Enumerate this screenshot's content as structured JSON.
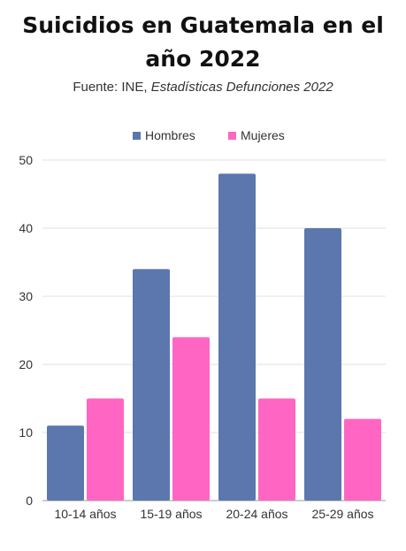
{
  "header": {
    "title": "Suicidios en Guatemala en el año 2022",
    "source_prefix": "Fuente: INE, ",
    "source_italic": "Estadísticas Defunciones 2022"
  },
  "chart_data": {
    "type": "bar",
    "title": "Suicidios en Guatemala en el año 2022",
    "subtitle": "Fuente: INE, Estadísticas Defunciones 2022",
    "categories": [
      "10-14 años",
      "15-19 años",
      "20-24 años",
      "25-29 años"
    ],
    "series": [
      {
        "name": "Hombres",
        "color": "#5b77ad",
        "values": [
          11,
          34,
          48,
          40
        ]
      },
      {
        "name": "Mujeres",
        "color": "#ff66c4",
        "values": [
          15,
          24,
          15,
          12
        ]
      }
    ],
    "ylim": [
      0,
      50
    ],
    "yticks": [
      0,
      10,
      20,
      30,
      40,
      50
    ],
    "grid": true,
    "legend_position": "top-center"
  }
}
